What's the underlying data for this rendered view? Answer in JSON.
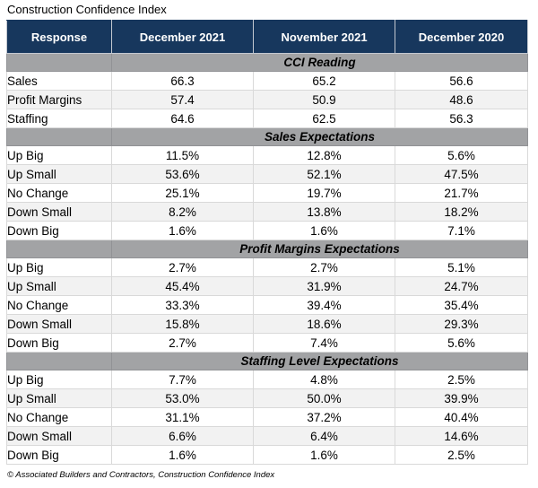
{
  "title": "Construction Confidence Index",
  "footer": "© Associated Builders and Contractors, Construction Confidence Index",
  "colors": {
    "header_bg": "#17375d",
    "header_text": "#ffffff",
    "section_bg": "#a2a3a5",
    "row_alt_bg": "#f2f2f2",
    "row_bg": "#ffffff",
    "cell_border": "#d9d9d9",
    "text": "#000000"
  },
  "chart_data": {
    "type": "table",
    "title": "Construction Confidence Index",
    "columns": [
      "Response",
      "December 2021",
      "November 2021",
      "December 2020"
    ],
    "sections": [
      {
        "label": "CCI Reading",
        "rows": [
          {
            "response": "Sales",
            "values": [
              "66.3",
              "65.2",
              "56.6"
            ]
          },
          {
            "response": "Profit Margins",
            "values": [
              "57.4",
              "50.9",
              "48.6"
            ]
          },
          {
            "response": "Staffing",
            "values": [
              "64.6",
              "62.5",
              "56.3"
            ]
          }
        ]
      },
      {
        "label": "Sales Expectations",
        "rows": [
          {
            "response": "Up Big",
            "values": [
              "11.5%",
              "12.8%",
              "5.6%"
            ]
          },
          {
            "response": "Up Small",
            "values": [
              "53.6%",
              "52.1%",
              "47.5%"
            ]
          },
          {
            "response": "No Change",
            "values": [
              "25.1%",
              "19.7%",
              "21.7%"
            ]
          },
          {
            "response": "Down Small",
            "values": [
              "8.2%",
              "13.8%",
              "18.2%"
            ]
          },
          {
            "response": "Down Big",
            "values": [
              "1.6%",
              "1.6%",
              "7.1%"
            ]
          }
        ]
      },
      {
        "label": "Profit Margins Expectations",
        "rows": [
          {
            "response": "Up Big",
            "values": [
              "2.7%",
              "2.7%",
              "5.1%"
            ]
          },
          {
            "response": "Up Small",
            "values": [
              "45.4%",
              "31.9%",
              "24.7%"
            ]
          },
          {
            "response": "No Change",
            "values": [
              "33.3%",
              "39.4%",
              "35.4%"
            ]
          },
          {
            "response": "Down Small",
            "values": [
              "15.8%",
              "18.6%",
              "29.3%"
            ]
          },
          {
            "response": "Down Big",
            "values": [
              "2.7%",
              "7.4%",
              "5.6%"
            ]
          }
        ]
      },
      {
        "label": "Staffing Level Expectations",
        "rows": [
          {
            "response": "Up Big",
            "values": [
              "7.7%",
              "4.8%",
              "2.5%"
            ]
          },
          {
            "response": "Up Small",
            "values": [
              "53.0%",
              "50.0%",
              "39.9%"
            ]
          },
          {
            "response": "No Change",
            "values": [
              "31.1%",
              "37.2%",
              "40.4%"
            ]
          },
          {
            "response": "Down Small",
            "values": [
              "6.6%",
              "6.4%",
              "14.6%"
            ]
          },
          {
            "response": "Down Big",
            "values": [
              "1.6%",
              "1.6%",
              "2.5%"
            ]
          }
        ]
      }
    ]
  }
}
